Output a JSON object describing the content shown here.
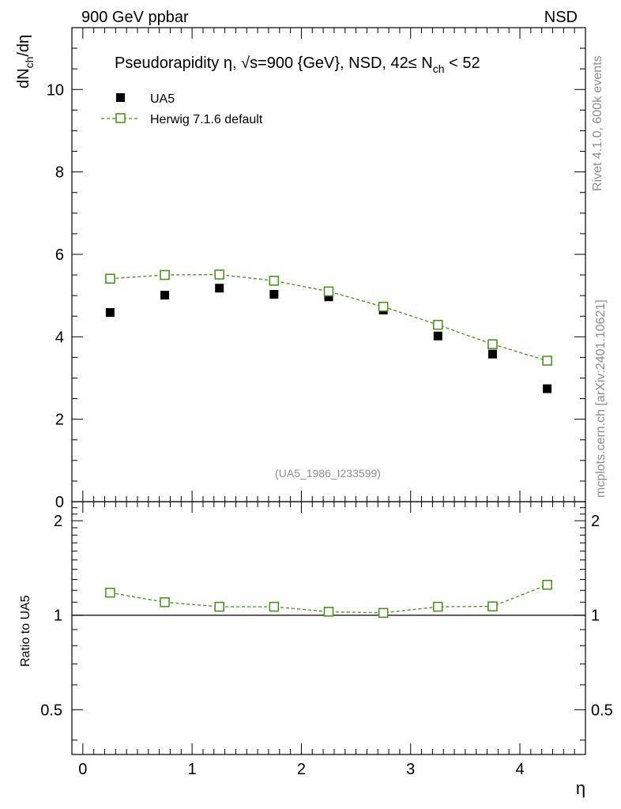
{
  "header": {
    "left": "900 GeV ppbar",
    "right": "NSD"
  },
  "side_labels": {
    "rivet": "Rivet 4.1.0,  600k events",
    "mcplots": "mcplots.cern.ch [arXiv:2401.10621]"
  },
  "chart_data": [
    {
      "type": "scatter",
      "panel": "main",
      "title": "Pseudorapidity η, √s=900 {GeV}, NSD, 42≤ N_ch < 52",
      "title_parts": {
        "main": "Pseudorapidity η, √s=900 {GeV}, NSD, 42≤ N",
        "sub": "ch",
        "tail": " < 52"
      },
      "ylabel_parts": {
        "a": "dN",
        "sub": "ch",
        "b": "/dη"
      },
      "analysis_id": "(UA5_1986_I233599)",
      "xlim": [
        -0.1,
        4.6
      ],
      "ylim": [
        0,
        11.5
      ],
      "yticks": [
        0,
        2,
        4,
        6,
        8,
        10
      ],
      "yticklabels": [
        "0",
        "2",
        "4",
        "6",
        "8",
        "10"
      ],
      "legend_position": "top-left",
      "x": [
        0.25,
        0.75,
        1.25,
        1.75,
        2.25,
        2.75,
        3.25,
        3.75,
        4.25
      ],
      "series": [
        {
          "name": "UA5",
          "marker": "filled-square",
          "color": "#000000",
          "values": [
            4.59,
            5.01,
            5.18,
            5.03,
            4.97,
            4.65,
            4.02,
            3.58,
            2.74
          ]
        },
        {
          "name": "Herwig 7.1.6 default",
          "marker": "open-square",
          "line": "dashed",
          "color": "#3f8f10",
          "values": [
            5.41,
            5.5,
            5.51,
            5.36,
            5.1,
            4.73,
            4.29,
            3.82,
            3.42
          ]
        }
      ]
    },
    {
      "type": "line",
      "panel": "ratio",
      "ylabel": "Ratio to UA5",
      "xlabel": "η",
      "xlim": [
        -0.1,
        4.6
      ],
      "ylim": [
        0.36,
        2.3
      ],
      "yscale": "log",
      "yticks": [
        0.5,
        1,
        2
      ],
      "yticklabels": [
        "0.5",
        "1",
        "2"
      ],
      "xticks": [
        0,
        1,
        2,
        3,
        4
      ],
      "xticklabels": [
        "0",
        "1",
        "2",
        "3",
        "4"
      ],
      "reference_line": 1,
      "x": [
        0.25,
        0.75,
        1.25,
        1.75,
        2.25,
        2.75,
        3.25,
        3.75,
        4.25
      ],
      "series": [
        {
          "name": "Herwig 7.1.6 default / UA5",
          "marker": "open-square",
          "line": "dashed",
          "color": "#3f8f10",
          "values": [
            1.18,
            1.1,
            1.064,
            1.064,
            1.026,
            1.017,
            1.064,
            1.067,
            1.25
          ]
        }
      ]
    }
  ]
}
